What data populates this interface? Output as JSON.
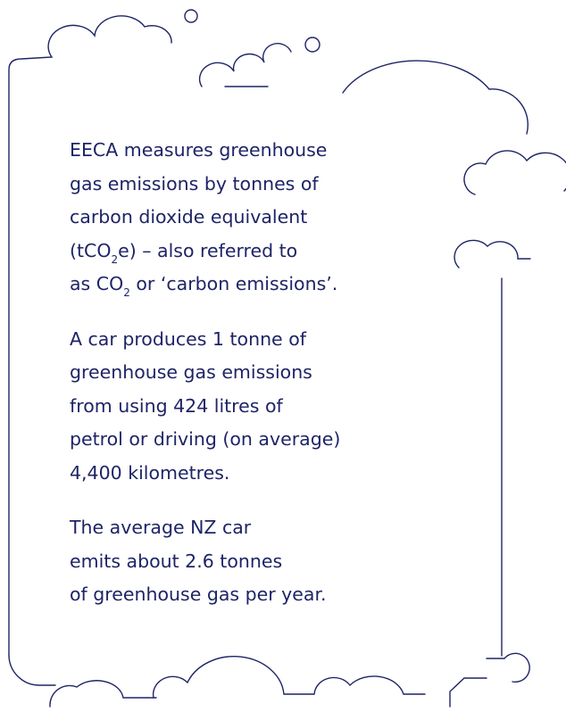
{
  "paragraphs": [
    {
      "lines": [
        [
          {
            "text": "EECA measures greenhouse"
          }
        ],
        [
          {
            "text": "gas emissions by tonnes of"
          }
        ],
        [
          {
            "text": "carbon dioxide equivalent"
          }
        ],
        [
          {
            "text": "(tCO"
          },
          {
            "text": "2",
            "sub": true
          },
          {
            "text": "e) – also referred to"
          }
        ],
        [
          {
            "text": "as CO"
          },
          {
            "text": "2",
            "sub": true
          },
          {
            "text": " or ‘carbon emissions’."
          }
        ]
      ]
    },
    {
      "lines": [
        [
          {
            "text": "A car produces 1 tonne of"
          }
        ],
        [
          {
            "text": "greenhouse gas emissions"
          }
        ],
        [
          {
            "text": "from using 424 litres of"
          }
        ],
        [
          {
            "text": "petrol or driving (on average)"
          }
        ],
        [
          {
            "text": "4,400 kilometres."
          }
        ]
      ]
    },
    {
      "lines": [
        [
          {
            "text": "The average NZ car"
          }
        ],
        [
          {
            "text": "emits about 2.6 tonnes"
          }
        ],
        [
          {
            "text": "of greenhouse gas per year."
          }
        ]
      ]
    }
  ]
}
